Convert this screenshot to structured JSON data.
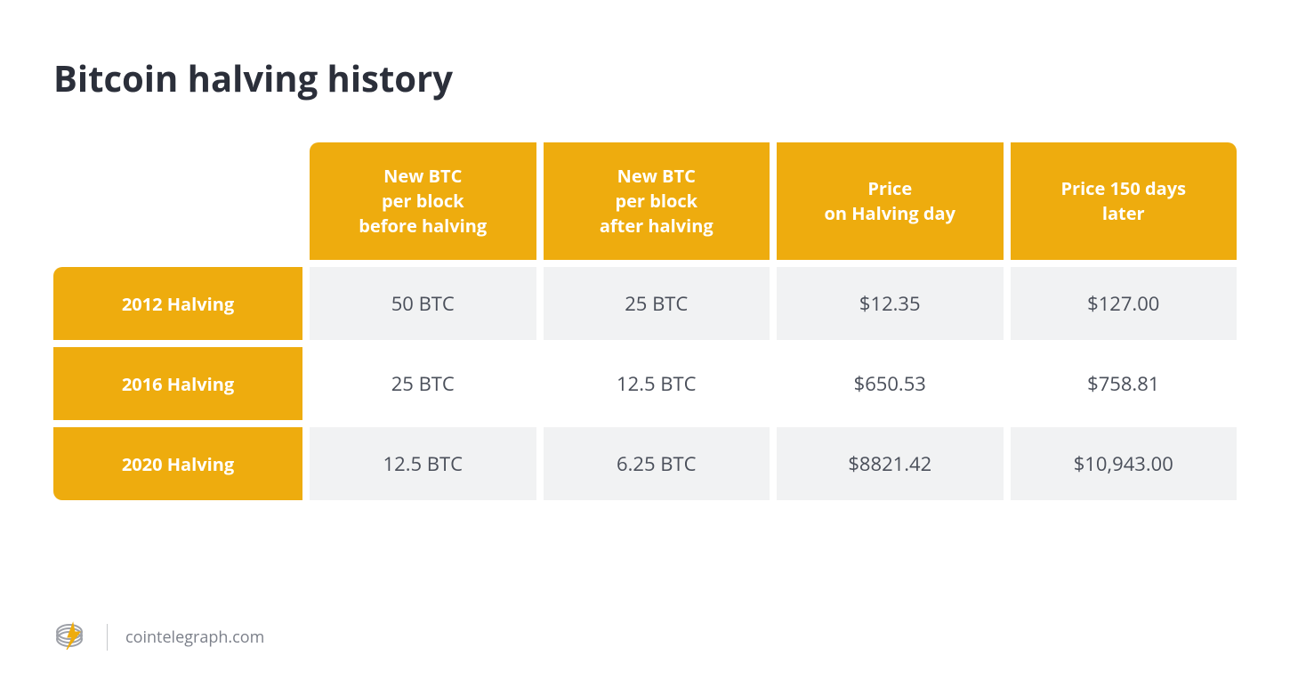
{
  "title": "Bitcoin halving history",
  "table": {
    "type": "table",
    "header_bg": "#eeac0e",
    "header_text_color": "#ffffff",
    "header_fontsize": 20,
    "header_fontweight": 700,
    "header_radius": 10,
    "row_odd_bg": "#f1f2f3",
    "row_even_bg": "#ffffff",
    "cell_text_color": "#4a4f5a",
    "cell_fontsize": 22,
    "gap": 8,
    "row_label_width": 280,
    "columns": [
      "New BTC\nper block\nbefore halving",
      "New BTC\nper block\nafter halving",
      "Price\non Halving day",
      "Price 150 days\nlater"
    ],
    "rows": [
      {
        "label": "2012 Halving",
        "cells": [
          "50 BTC",
          "25 BTC",
          "$12.35",
          "$127.00"
        ]
      },
      {
        "label": "2016 Halving",
        "cells": [
          "25 BTC",
          "12.5 BTC",
          "$650.53",
          "$758.81"
        ]
      },
      {
        "label": "2020 Halving",
        "cells": [
          "12.5 BTC",
          "6.25 BTC",
          "$8821.42",
          "$10,943.00"
        ]
      }
    ]
  },
  "footer": {
    "source": "cointelegraph.com",
    "logo_stroke": "#9ea1a8",
    "logo_accent": "#eeac0e"
  },
  "colors": {
    "title": "#2b2f3a",
    "background": "#ffffff",
    "divider": "#c7c9cc",
    "footer_text": "#7c808a"
  },
  "typography": {
    "title_fontsize": 40,
    "title_fontweight": 700,
    "footer_fontsize": 18
  }
}
